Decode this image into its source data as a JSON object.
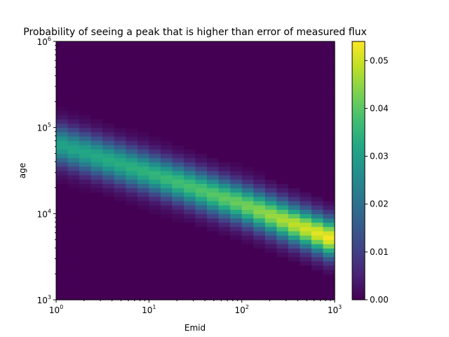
{
  "chart_data": {
    "type": "heatmap",
    "title": "Probability of seeing a peak that is higher than error of measured flux",
    "xlabel": "Emid",
    "ylabel": "age",
    "x_scale": "log",
    "y_scale": "log",
    "xlim": [
      1,
      1000
    ],
    "ylim": [
      1000,
      1000000
    ],
    "x_ticks": [
      1,
      10,
      100,
      1000
    ],
    "y_ticks": [
      1000,
      10000,
      100000,
      1000000
    ],
    "x_tick_labels": [
      {
        "base": "10",
        "exp": "0"
      },
      {
        "base": "10",
        "exp": "1"
      },
      {
        "base": "10",
        "exp": "2"
      },
      {
        "base": "10",
        "exp": "3"
      }
    ],
    "y_tick_labels": [
      {
        "base": "10",
        "exp": "3"
      },
      {
        "base": "10",
        "exp": "4"
      },
      {
        "base": "10",
        "exp": "5"
      },
      {
        "base": "10",
        "exp": "6"
      }
    ],
    "colormap": "viridis",
    "colorbar": {
      "min": 0,
      "max": 0.054,
      "ticks": [
        "0.00",
        "0.01",
        "0.02",
        "0.03",
        "0.04",
        "0.05"
      ]
    },
    "band": {
      "description_points": [
        {
          "Emid": 1,
          "age_center": 65000,
          "peak_value": 0.031
        },
        {
          "Emid": 10,
          "age_center": 30000,
          "peak_value": 0.035
        },
        {
          "Emid": 100,
          "age_center": 13000,
          "peak_value": 0.042
        },
        {
          "Emid": 1000,
          "age_center": 5000,
          "peak_value": 0.054
        }
      ],
      "log_width_decades": 0.22
    },
    "grid": false
  }
}
